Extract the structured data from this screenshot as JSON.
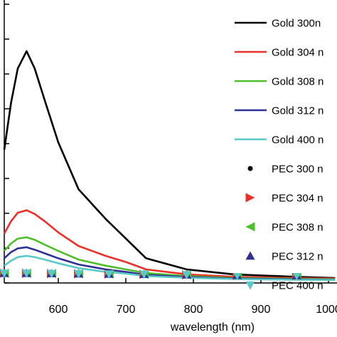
{
  "chart_data": {
    "type": "line",
    "xlabel": "wavelength (nm)",
    "xlim": [
      520,
      1010
    ],
    "ylim": [
      0,
      100
    ],
    "x_ticks": [
      600,
      700,
      800,
      900,
      1000
    ],
    "x_tick_labels": [
      "600",
      "700",
      "800",
      "900",
      "1000"
    ],
    "legend_position": "top-right",
    "series": [
      {
        "name": "Gold 300n",
        "style": "line",
        "color": "#000000",
        "x": [
          520,
          530,
          540,
          553,
          565,
          580,
          600,
          630,
          670,
          700,
          730,
          790,
          860,
          950,
          1010
        ],
        "y": [
          54,
          73,
          87,
          94,
          87,
          74,
          57,
          38,
          26,
          18,
          10,
          5.5,
          3.5,
          2.5,
          2
        ]
      },
      {
        "name": "Gold 304 n",
        "style": "line",
        "color": "#e8312a",
        "x": [
          520,
          530,
          540,
          553,
          565,
          580,
          600,
          630,
          670,
          700,
          730,
          790,
          860,
          950,
          1010
        ],
        "y": [
          20,
          25,
          28.5,
          29.5,
          28,
          25,
          20.5,
          15,
          11,
          8.5,
          5.5,
          3.5,
          2.5,
          2,
          1.8
        ]
      },
      {
        "name": "Gold 308 n",
        "style": "line",
        "color": "#4fbe2b",
        "x": [
          520,
          530,
          540,
          553,
          565,
          580,
          600,
          630,
          670,
          700,
          730,
          790,
          860,
          950,
          1010
        ],
        "y": [
          13,
          16,
          18,
          18.5,
          17.5,
          15.5,
          13,
          9.5,
          7,
          5.5,
          4,
          2.8,
          2,
          1.7,
          1.5
        ]
      },
      {
        "name": "Gold 312 n",
        "style": "line",
        "color": "#2e3192",
        "x": [
          520,
          530,
          540,
          553,
          565,
          580,
          600,
          630,
          670,
          700,
          730,
          790,
          860,
          950,
          1010
        ],
        "y": [
          10,
          12.5,
          14,
          14.5,
          13.5,
          12,
          10,
          7.5,
          5.5,
          4.5,
          3.3,
          2.4,
          1.8,
          1.5,
          1.3
        ]
      },
      {
        "name": "Gold 400 n",
        "style": "line",
        "color": "#5bc8c8",
        "x": [
          520,
          530,
          540,
          553,
          565,
          580,
          600,
          630,
          670,
          700,
          730,
          790,
          860,
          950,
          1010
        ],
        "y": [
          7,
          9,
          10.5,
          11,
          10.5,
          9.5,
          8,
          6,
          4.5,
          3.8,
          2.8,
          2.1,
          1.6,
          1.3,
          1.2
        ]
      },
      {
        "name": "PEC 300 n",
        "style": "marker",
        "marker": "circle",
        "color": "#000000",
        "x": [
          520,
          553,
          590,
          630,
          675,
          727,
          790,
          865,
          953
        ],
        "y": [
          2.2,
          2.2,
          2.1,
          2,
          1.9,
          1.8,
          1.6,
          1.4,
          1.3
        ]
      },
      {
        "name": "PEC 304 n",
        "style": "marker",
        "marker": "triangle-right",
        "color": "#e8312a",
        "x": [
          520,
          553,
          590,
          630,
          675,
          727,
          790,
          865,
          953
        ],
        "y": [
          2.2,
          2.2,
          2.1,
          2,
          1.9,
          1.8,
          1.6,
          1.4,
          1.3
        ]
      },
      {
        "name": "PEC 308 n",
        "style": "marker",
        "marker": "triangle-left",
        "color": "#4fbe2b",
        "x": [
          520,
          553,
          590,
          630,
          675,
          727,
          790,
          865,
          953
        ],
        "y": [
          2.2,
          2.2,
          2.1,
          2,
          1.9,
          1.8,
          1.6,
          1.4,
          1.3
        ]
      },
      {
        "name": "PEC 312 n",
        "style": "marker",
        "marker": "triangle-up",
        "color": "#2e3192",
        "x": [
          520,
          553,
          590,
          630,
          675,
          727,
          790,
          865,
          953
        ],
        "y": [
          2.2,
          2.2,
          2.1,
          2,
          1.9,
          1.8,
          1.6,
          1.4,
          1.3
        ]
      },
      {
        "name": "PEC 400 n",
        "style": "marker",
        "marker": "triangle-down",
        "color": "#5bc8c8",
        "x": [
          520,
          553,
          590,
          630,
          675,
          727,
          790,
          865,
          953
        ],
        "y": [
          2.2,
          2.2,
          2.1,
          2,
          1.9,
          1.8,
          1.6,
          1.4,
          1.3
        ]
      }
    ]
  }
}
